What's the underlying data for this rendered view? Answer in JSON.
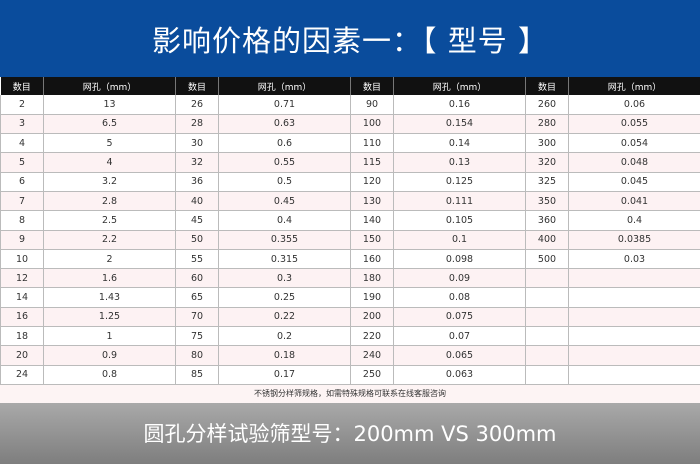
{
  "title": "影响价格的因素一：【 型号 】",
  "headers": [
    "数目",
    "网孔（mm）",
    "数目",
    "网孔（mm）",
    "数目",
    "网孔（mm）",
    "数目",
    "网孔（mm）"
  ],
  "rows": [
    [
      "2",
      "13",
      "26",
      "0.71",
      "90",
      "0.16",
      "260",
      "0.06"
    ],
    [
      "3",
      "6.5",
      "28",
      "0.63",
      "100",
      "0.154",
      "280",
      "0.055"
    ],
    [
      "4",
      "5",
      "30",
      "0.6",
      "110",
      "0.14",
      "300",
      "0.054"
    ],
    [
      "5",
      "4",
      "32",
      "0.55",
      "115",
      "0.13",
      "320",
      "0.048"
    ],
    [
      "6",
      "3.2",
      "36",
      "0.5",
      "120",
      "0.125",
      "325",
      "0.045"
    ],
    [
      "7",
      "2.8",
      "40",
      "0.45",
      "130",
      "0.111",
      "350",
      "0.041"
    ],
    [
      "8",
      "2.5",
      "45",
      "0.4",
      "140",
      "0.105",
      "360",
      "0.4"
    ],
    [
      "9",
      "2.2",
      "50",
      "0.355",
      "150",
      "0.1",
      "400",
      "0.0385"
    ],
    [
      "10",
      "2",
      "55",
      "0.315",
      "160",
      "0.098",
      "500",
      "0.03"
    ],
    [
      "12",
      "1.6",
      "60",
      "0.3",
      "180",
      "0.09",
      "",
      ""
    ],
    [
      "14",
      "1.43",
      "65",
      "0.25",
      "190",
      "0.08",
      "",
      ""
    ],
    [
      "16",
      "1.25",
      "70",
      "0.22",
      "200",
      "0.075",
      "",
      ""
    ],
    [
      "18",
      "1",
      "75",
      "0.2",
      "220",
      "0.07",
      "",
      ""
    ],
    [
      "20",
      "0.9",
      "80",
      "0.18",
      "240",
      "0.065",
      "",
      ""
    ],
    [
      "24",
      "0.8",
      "85",
      "0.17",
      "250",
      "0.063",
      "",
      ""
    ]
  ],
  "note": "不锈钢分样筛规格，如需特殊规格可联系在线客服咨询",
  "footer": "圆孔分样试验筛型号：200mm VS 300mm"
}
